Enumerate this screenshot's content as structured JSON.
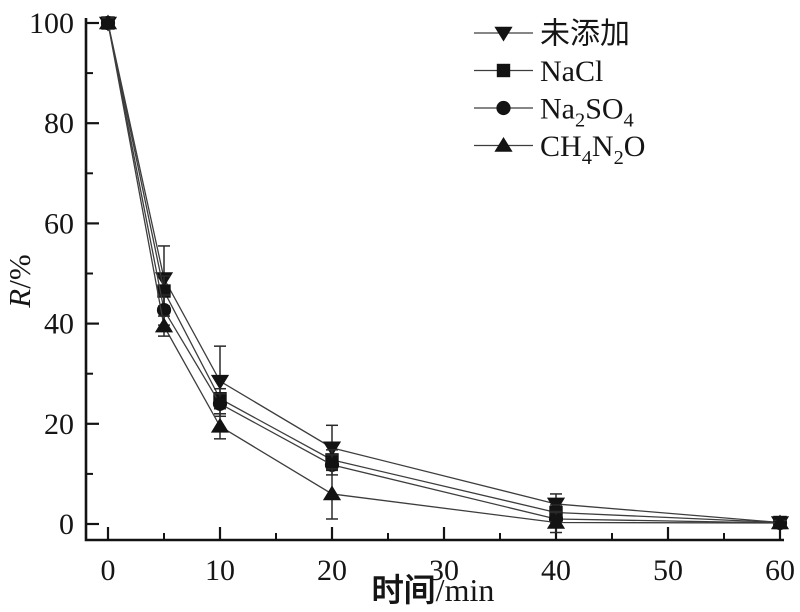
{
  "chart_data": {
    "type": "line",
    "title": "",
    "xlabel": "时间/min",
    "ylabel": "R/%",
    "xlabel_parts": [
      {
        "text": "时间",
        "bold": true
      },
      {
        "text": "/min"
      }
    ],
    "ylabel_parts": [
      {
        "text": "R",
        "italic": true
      },
      {
        "text": "/%"
      }
    ],
    "x": [
      0,
      5,
      10,
      20,
      40,
      60
    ],
    "x_ticks_major": [
      0,
      10,
      20,
      30,
      40,
      50,
      60
    ],
    "x_ticks_minor": [
      5,
      15,
      25,
      35,
      45,
      55
    ],
    "y_ticks_major": [
      0,
      20,
      40,
      60,
      80,
      100
    ],
    "y_ticks_minor": [
      10,
      30,
      50,
      70,
      90
    ],
    "xlim": [
      -2,
      60.4
    ],
    "ylim": [
      -3.2,
      101
    ],
    "grid": false,
    "legend_position": "top-right-inside",
    "series": [
      {
        "name": "未添加",
        "label_parts": [
          {
            "text": "未添加"
          }
        ],
        "marker": "triangle-down",
        "values": [
          100,
          49,
          28.5,
          15.2,
          4,
          0.3
        ],
        "errors": [
          1,
          6.5,
          7,
          4.5,
          2,
          0.5
        ]
      },
      {
        "name": "NaCl",
        "label_parts": [
          {
            "text": "NaCl"
          }
        ],
        "marker": "square",
        "values": [
          100,
          46.5,
          25,
          12.8,
          2.3,
          0.3
        ],
        "errors": [
          1,
          3,
          2,
          2,
          1.5,
          0.5
        ]
      },
      {
        "name": "Na2SO4",
        "label_parts": [
          {
            "text": "Na"
          },
          {
            "text": "2",
            "sub": true
          },
          {
            "text": "SO"
          },
          {
            "text": "4",
            "sub": true
          }
        ],
        "marker": "circle",
        "values": [
          100,
          42.7,
          24,
          11.8,
          1,
          0.2
        ],
        "errors": [
          1,
          3,
          2,
          2,
          1.5,
          0.5
        ]
      },
      {
        "name": "CH4N2O",
        "label_parts": [
          {
            "text": "CH"
          },
          {
            "text": "4",
            "sub": true
          },
          {
            "text": "N"
          },
          {
            "text": "2",
            "sub": true
          },
          {
            "text": "O"
          }
        ],
        "marker": "triangle-up",
        "values": [
          100,
          39.5,
          19.5,
          6,
          0.3,
          0.2
        ],
        "errors": [
          1,
          2,
          2.5,
          5,
          2,
          0.5
        ]
      }
    ],
    "colors": {
      "axis": "#131313",
      "line": "#3d3d3d",
      "marker": "#131313",
      "errorbar": "#2a2a2a",
      "background": "#ffffff",
      "text": "#151515"
    }
  }
}
